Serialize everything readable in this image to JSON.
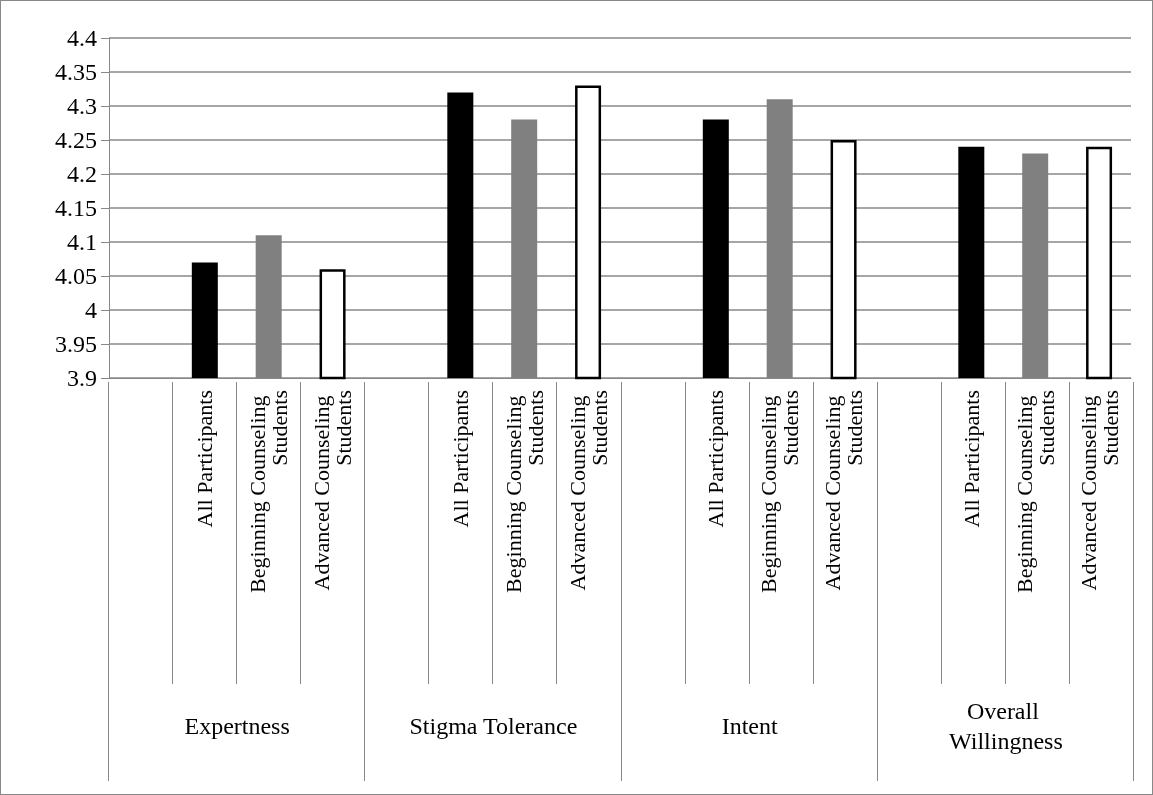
{
  "chart_data": {
    "type": "bar",
    "categories": [
      null,
      "All Participants",
      "Beginning Counseling Students",
      "Advanced Counseling Students",
      null,
      "All Participants",
      "Beginning Counseling Students",
      "Advanced Counseling Students",
      null,
      "All Participants",
      "Beginning Counseling Students",
      "Advanced Counseling Students",
      null,
      "All Participants",
      "Beginning Counseling Students",
      "Advanced Counseling Students"
    ],
    "values": [
      null,
      4.07,
      4.11,
      4.06,
      null,
      4.32,
      4.28,
      4.33,
      null,
      4.28,
      4.31,
      4.25,
      null,
      4.24,
      4.23,
      4.24
    ],
    "colors": [
      null,
      "#000000",
      "#808080",
      "#ffffff",
      null,
      "#000000",
      "#808080",
      "#ffffff",
      null,
      "#000000",
      "#808080",
      "#ffffff",
      null,
      "#000000",
      "#808080",
      "#ffffff"
    ],
    "annotations": [
      "Expertness",
      "Stigma Tolerance",
      "Intent",
      "Overall Willingness"
    ],
    "ylim": [
      3.9,
      4.4
    ],
    "yticks": [
      3.9,
      3.95,
      4,
      4.05,
      4.1,
      4.15,
      4.2,
      4.25,
      4.3,
      4.35,
      4.4
    ],
    "grid": "y"
  }
}
